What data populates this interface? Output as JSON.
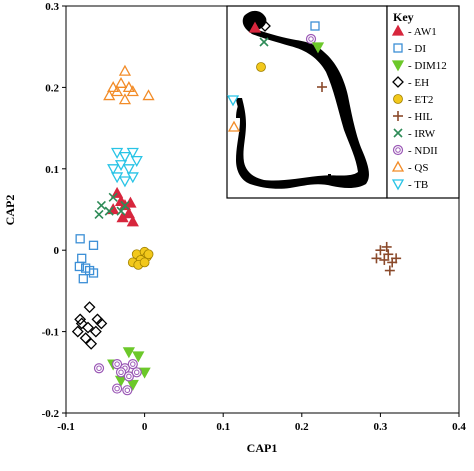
{
  "chart_data": {
    "type": "scatter",
    "xlabel": "CAP1",
    "ylabel": "CAP2",
    "xlim": [
      -0.1,
      0.4
    ],
    "ylim": [
      -0.2,
      0.3
    ],
    "xticks": [
      -0.1,
      0,
      0.1,
      0.2,
      0.3,
      0.4
    ],
    "yticks": [
      -0.2,
      -0.1,
      0,
      0.1,
      0.2,
      0.3
    ],
    "xtick_labels": [
      "-0.1",
      "0",
      "0.1",
      "0.2",
      "0.3",
      "0.4"
    ],
    "ytick_labels": [
      "-0.2",
      "-0.1",
      "0",
      "0.1",
      "0.2",
      "0.3"
    ],
    "grid": false,
    "legend": {
      "title": "Key",
      "placement": "top-right",
      "entries": [
        "- AW1",
        "- DI",
        "- DIM12",
        "- EH",
        "- ET2",
        "- HIL",
        "- IRW",
        "- NDII",
        "- QS",
        "- TB"
      ]
    },
    "inset": "map of sampling site locations",
    "series": [
      {
        "name": "AW1",
        "marker": "triangle-up",
        "color": "#d7263d",
        "filled": true,
        "points": [
          [
            -0.035,
            0.07
          ],
          [
            -0.03,
            0.06
          ],
          [
            -0.025,
            0.055
          ],
          [
            -0.02,
            0.045
          ],
          [
            -0.015,
            0.035
          ],
          [
            -0.04,
            0.05
          ],
          [
            -0.028,
            0.04
          ],
          [
            -0.018,
            0.058
          ]
        ]
      },
      {
        "name": "DI",
        "marker": "square",
        "color": "#3c8fd6",
        "filled": false,
        "points": [
          [
            -0.082,
            0.014
          ],
          [
            -0.065,
            0.006
          ],
          [
            -0.08,
            -0.01
          ],
          [
            -0.083,
            -0.02
          ],
          [
            -0.07,
            -0.025
          ],
          [
            -0.065,
            -0.028
          ],
          [
            -0.078,
            -0.035
          ],
          [
            -0.075,
            -0.022
          ]
        ]
      },
      {
        "name": "DIM12",
        "marker": "triangle-down",
        "color": "#6cc82a",
        "filled": true,
        "points": [
          [
            -0.02,
            -0.125
          ],
          [
            -0.008,
            -0.13
          ],
          [
            -0.04,
            -0.14
          ],
          [
            -0.02,
            -0.155
          ],
          [
            0,
            -0.15
          ],
          [
            -0.03,
            -0.16
          ],
          [
            -0.015,
            -0.165
          ]
        ]
      },
      {
        "name": "EH",
        "marker": "diamond",
        "color": "#000000",
        "filled": false,
        "points": [
          [
            -0.07,
            -0.07
          ],
          [
            -0.082,
            -0.085
          ],
          [
            -0.06,
            -0.085
          ],
          [
            -0.072,
            -0.095
          ],
          [
            -0.085,
            -0.1
          ],
          [
            -0.062,
            -0.1
          ],
          [
            -0.075,
            -0.108
          ],
          [
            -0.068,
            -0.115
          ],
          [
            -0.08,
            -0.09
          ],
          [
            -0.055,
            -0.09
          ]
        ]
      },
      {
        "name": "ET2",
        "marker": "circle",
        "color": "#f2c81b",
        "filled": true,
        "points": [
          [
            -0.01,
            -0.005
          ],
          [
            0,
            -0.002
          ],
          [
            0.003,
            -0.008
          ],
          [
            -0.005,
            -0.012
          ],
          [
            -0.015,
            -0.015
          ],
          [
            -0.008,
            -0.018
          ],
          [
            0,
            -0.015
          ],
          [
            0.005,
            -0.005
          ]
        ]
      },
      {
        "name": "HIL",
        "marker": "plus",
        "color": "#8b4a2b",
        "filled": false,
        "points": [
          [
            0.3,
            0
          ],
          [
            0.31,
            -0.005
          ],
          [
            0.32,
            -0.01
          ],
          [
            0.305,
            -0.012
          ],
          [
            0.315,
            -0.015
          ],
          [
            0.295,
            -0.01
          ],
          [
            0.312,
            -0.025
          ],
          [
            0.308,
            0.004
          ]
        ]
      },
      {
        "name": "IRW",
        "marker": "x",
        "color": "#2e8b57",
        "filled": false,
        "points": [
          [
            -0.04,
            0.065
          ],
          [
            -0.055,
            0.055
          ],
          [
            -0.025,
            0.055
          ],
          [
            -0.045,
            0.048
          ],
          [
            -0.058,
            0.044
          ],
          [
            -0.03,
            0.048
          ]
        ]
      },
      {
        "name": "NDII",
        "marker": "spiral",
        "color": "#9b59b6",
        "filled": false,
        "points": [
          [
            -0.058,
            -0.145
          ],
          [
            -0.035,
            -0.14
          ],
          [
            -0.025,
            -0.145
          ],
          [
            -0.015,
            -0.14
          ],
          [
            -0.03,
            -0.15
          ],
          [
            -0.02,
            -0.155
          ],
          [
            -0.01,
            -0.15
          ],
          [
            -0.035,
            -0.17
          ],
          [
            -0.022,
            -0.172
          ]
        ]
      },
      {
        "name": "QS",
        "marker": "triangle-up",
        "color": "#f28c28",
        "filled": false,
        "points": [
          [
            -0.025,
            0.22
          ],
          [
            -0.04,
            0.2
          ],
          [
            -0.03,
            0.205
          ],
          [
            -0.02,
            0.2
          ],
          [
            -0.015,
            0.195
          ],
          [
            0.005,
            0.19
          ],
          [
            -0.045,
            0.19
          ],
          [
            -0.025,
            0.185
          ],
          [
            -0.035,
            0.195
          ]
        ]
      },
      {
        "name": "TB",
        "marker": "triangle-down",
        "color": "#29c4e6",
        "filled": false,
        "points": [
          [
            -0.035,
            0.12
          ],
          [
            -0.025,
            0.115
          ],
          [
            -0.015,
            0.12
          ],
          [
            -0.03,
            0.105
          ],
          [
            -0.04,
            0.1
          ],
          [
            -0.02,
            0.1
          ],
          [
            -0.01,
            0.11
          ],
          [
            -0.035,
            0.09
          ],
          [
            -0.025,
            0.085
          ],
          [
            -0.015,
            0.09
          ]
        ]
      }
    ]
  }
}
